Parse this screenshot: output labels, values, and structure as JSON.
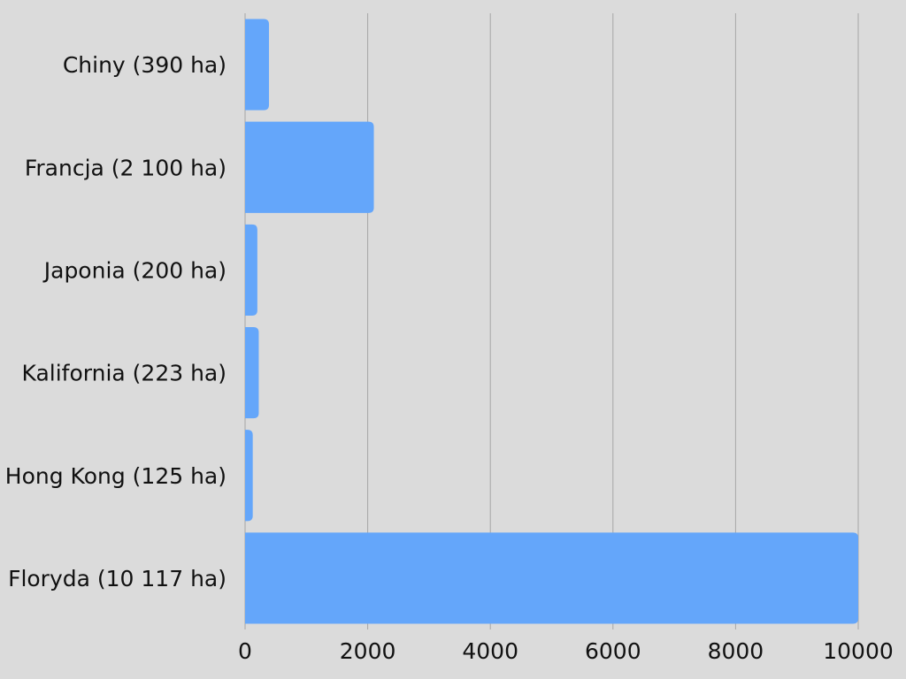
{
  "chart_data": {
    "type": "bar",
    "orientation": "horizontal",
    "categories": [
      "Chiny (390 ha)",
      "Francja (2 100 ha)",
      "Japonia (200 ha)",
      "Kalifornia (223 ha)",
      "Hong Kong (125 ha)",
      "Floryda (10 117 ha)"
    ],
    "values": [
      390,
      2100,
      200,
      223,
      125,
      10117
    ],
    "title": "",
    "xlabel": "",
    "ylabel": "",
    "xlim": [
      0,
      10000
    ],
    "x_ticks": [
      "0",
      "2000",
      "4000",
      "6000",
      "8000",
      "10000"
    ],
    "grid": "vertical",
    "legend": "none"
  },
  "colors": {
    "background": "#dbdbdb",
    "bar": "#64a6fa",
    "grid": "#a6a6a6",
    "text": "#111111"
  }
}
